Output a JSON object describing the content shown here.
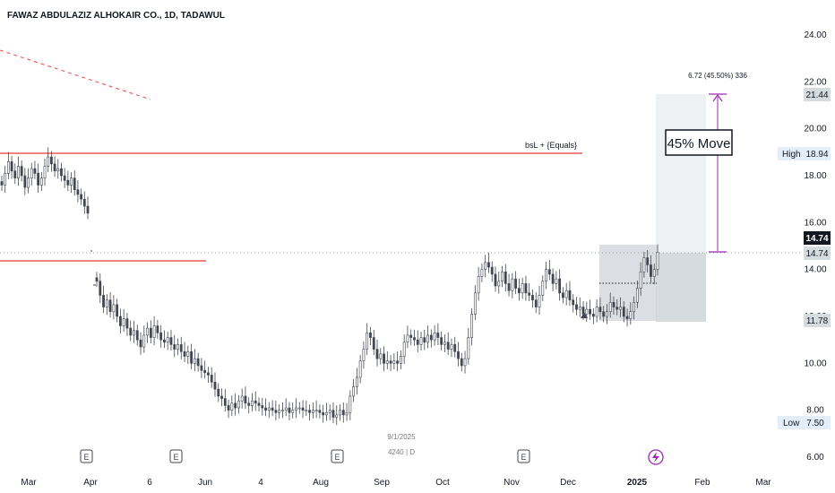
{
  "header": {
    "title": "FAWAZ ABDULAZIZ ALHOKAIR CO., 1D, TADAWUL"
  },
  "colors": {
    "up": "#26a69a",
    "candle": "#434651",
    "resistance": "#e53935",
    "target": "#9c27b0",
    "axis_text": "#787b86"
  },
  "chart_data": {
    "type": "candlestick",
    "title": "FAWAZ ABDULAZIZ ALHOKAIR CO., 1D, TADAWUL",
    "ylim": [
      6,
      24
    ],
    "y_ticks": [
      "24.00",
      "22.00",
      "20.00",
      "18.00",
      "16.00",
      "14.00",
      "12.00",
      "10.00",
      "8.00",
      "6.00"
    ],
    "x_ticks": [
      "Mar",
      "Apr",
      "6",
      "Jun",
      "4",
      "Aug",
      "Sep",
      "Oct",
      "Nov",
      "Dec",
      "2025",
      "Feb",
      "Mar"
    ],
    "price_labels": {
      "target": "21.44",
      "high_label": "High",
      "high": "18.94",
      "last": "14.74",
      "entry": "14.74",
      "stop": "11.78",
      "low_label": "Low",
      "low": "7.50"
    },
    "annotations": {
      "measure_text": "6.72 (45.50%) 336",
      "resistance_text": "bsL + {Equals}",
      "move_text": "45% Move",
      "cursor_date": "9/1/2025",
      "cursor_bar": "4240 | D"
    },
    "levels": {
      "resistance": 18.9,
      "support": 14.45,
      "dashed_start": 23.3,
      "dashed_end": 20.3
    },
    "series": [
      {
        "segment": "early",
        "values": [
          17.6,
          18.1,
          18.6,
          18.2,
          17.9,
          18.4,
          18.0,
          17.5,
          17.9,
          18.3,
          18.1,
          17.6,
          17.9,
          18.4,
          18.8,
          18.5,
          18.2,
          18.3,
          18.0,
          17.8,
          17.6,
          17.9,
          17.4,
          17.2,
          17.0,
          16.7,
          16.4
        ]
      },
      {
        "segment": "main",
        "values": [
          13.5,
          12.9,
          12.4,
          12.7,
          12.2,
          12.5,
          12.0,
          11.6,
          11.9,
          11.5,
          11.2,
          11.4,
          11.0,
          10.7,
          11.2,
          11.5,
          11.1,
          11.6,
          11.3,
          11.0,
          10.9,
          11.1,
          10.8,
          10.6,
          10.8,
          10.5,
          10.3,
          10.5,
          10.0,
          10.2,
          9.9,
          9.7,
          9.6,
          9.5,
          9.2,
          8.9,
          8.6,
          8.5,
          8.2,
          8.0,
          8.3,
          8.1,
          8.4,
          8.6,
          8.3,
          8.2,
          8.4,
          8.3,
          8.2,
          8.1,
          8.0,
          8.1,
          8.0,
          7.9,
          8.0,
          8.0,
          8.1,
          7.9,
          8.0,
          8.1,
          8.1,
          8.0,
          8.0,
          7.9,
          8.0,
          8.0,
          7.9,
          7.8,
          7.9,
          8.0,
          7.7,
          7.8,
          8.0,
          7.8,
          7.9,
          8.6,
          9.0,
          9.4,
          10.1,
          10.6,
          11.3,
          11.1,
          10.6,
          10.2,
          10.4,
          10.0,
          10.1,
          10.0,
          10.1,
          10.0,
          10.3,
          10.9,
          11.2,
          11.1,
          11.0,
          10.8,
          11.1,
          10.9,
          11.2,
          11.0,
          11.3,
          11.1,
          10.8,
          10.9,
          10.6,
          10.8,
          10.5,
          10.2,
          9.9,
          10.2,
          11.1,
          12.1,
          13.0,
          13.7,
          14.0,
          14.3,
          14.1,
          13.8,
          13.3,
          13.5,
          13.9,
          13.4,
          13.1,
          13.6,
          13.2,
          13.0,
          13.4,
          13.0,
          12.9,
          12.7,
          12.4,
          12.9,
          13.5,
          14.0,
          13.8,
          13.4,
          13.6,
          13.0,
          12.8,
          13.1,
          12.7,
          12.5,
          12.3,
          12.4,
          12.1,
          12.3,
          12.1,
          12.0,
          12.4,
          12.2,
          12.0,
          12.2,
          12.6,
          12.4,
          12.3,
          12.4,
          12.0,
          11.9,
          12.2,
          12.6,
          13.2,
          13.9,
          14.5,
          14.2,
          13.7,
          14.0,
          14.74
        ]
      }
    ]
  }
}
